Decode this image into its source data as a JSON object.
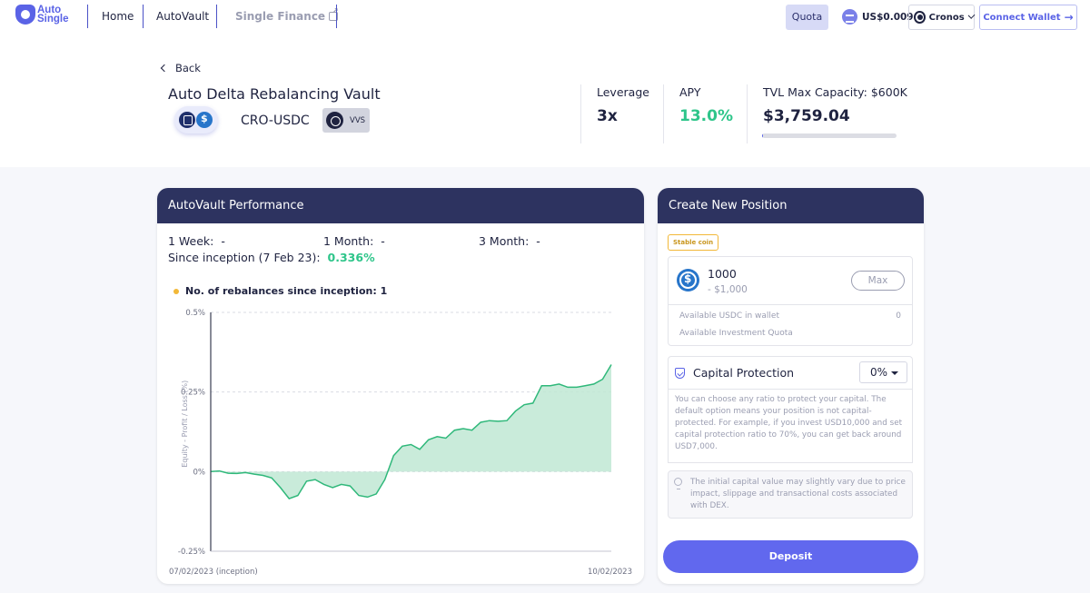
{
  "nav": {
    "logo_line1": "Auto",
    "logo_line2": "Single",
    "links": [
      "Home",
      "AutoVault",
      "Single Finance"
    ],
    "quota": "Quota",
    "token_price": "US$0.009",
    "chain": "Cronos",
    "connect": "Connect Wallet"
  },
  "vault": {
    "back": "Back",
    "title": "Auto Delta Rebalancing Vault",
    "pair": "CRO-USDC",
    "dex": "VVS",
    "leverage_label": "Leverage",
    "leverage": "3x",
    "apy_label": "APY",
    "apy": "13.0%",
    "tvl_label": "TVL  Max Capacity: $600K",
    "tvl": "$3,759.04",
    "tvl_fill_fraction": 0.006
  },
  "performance": {
    "title": "AutoVault Performance",
    "week_label": "1 Week:",
    "week": "-",
    "month_label": "1 Month:",
    "month": "-",
    "three_month_label": "3 Month:",
    "three_month": "-",
    "inception_label": "Since inception (7 Feb 23):",
    "inception": "0.336%",
    "rebalances": "No. of rebalances since inception: 1"
  },
  "chart_data": {
    "type": "area",
    "ylabel": "Equity - Profit / Loss (%)",
    "yticks": [
      "0.5%",
      "0.25%",
      "0%",
      "-0.25%"
    ],
    "ylim": [
      -0.25,
      0.5
    ],
    "xtick_start": "07/02/2023 (inception)",
    "xtick_end": "10/02/2023",
    "grid": true,
    "colors": {
      "positive": "#2fb87a",
      "negative": "#e0474c",
      "positive_fill": "#bfe8d3",
      "negative_fill": "#f6dede"
    },
    "values": [
      0.0,
      0.002,
      -0.005,
      -0.006,
      -0.003,
      -0.008,
      -0.012,
      -0.02,
      -0.05,
      -0.085,
      -0.075,
      -0.03,
      -0.025,
      -0.04,
      -0.05,
      -0.04,
      -0.045,
      -0.075,
      -0.08,
      -0.07,
      -0.025,
      0.05,
      0.08,
      0.085,
      0.07,
      0.1,
      0.11,
      0.105,
      0.13,
      0.135,
      0.13,
      0.155,
      0.16,
      0.158,
      0.16,
      0.19,
      0.21,
      0.215,
      0.27,
      0.27,
      0.275,
      0.265,
      0.265,
      0.27,
      0.275,
      0.29,
      0.336
    ]
  },
  "position": {
    "title": "Create New Position",
    "badge": "Stable coin",
    "amount": "1000",
    "amount_usd": "- $1,000",
    "max": "Max",
    "available_wallet_label": "Available USDC in wallet",
    "available_wallet": "0",
    "available_quota_label": "Available Investment Quota",
    "protection_label": "Capital Protection",
    "protection_value": "0%",
    "protection_desc": "You can choose any ratio to protect your capital. The default option means your position is not capital-protected. For example, if you invest USD10,000 and set capital protection ratio to 70%, you can get back around USD7,000.",
    "note": "The initial capital value may slightly vary due to price impact, slippage and transactional costs associated with DEX.",
    "deposit": "Deposit"
  }
}
